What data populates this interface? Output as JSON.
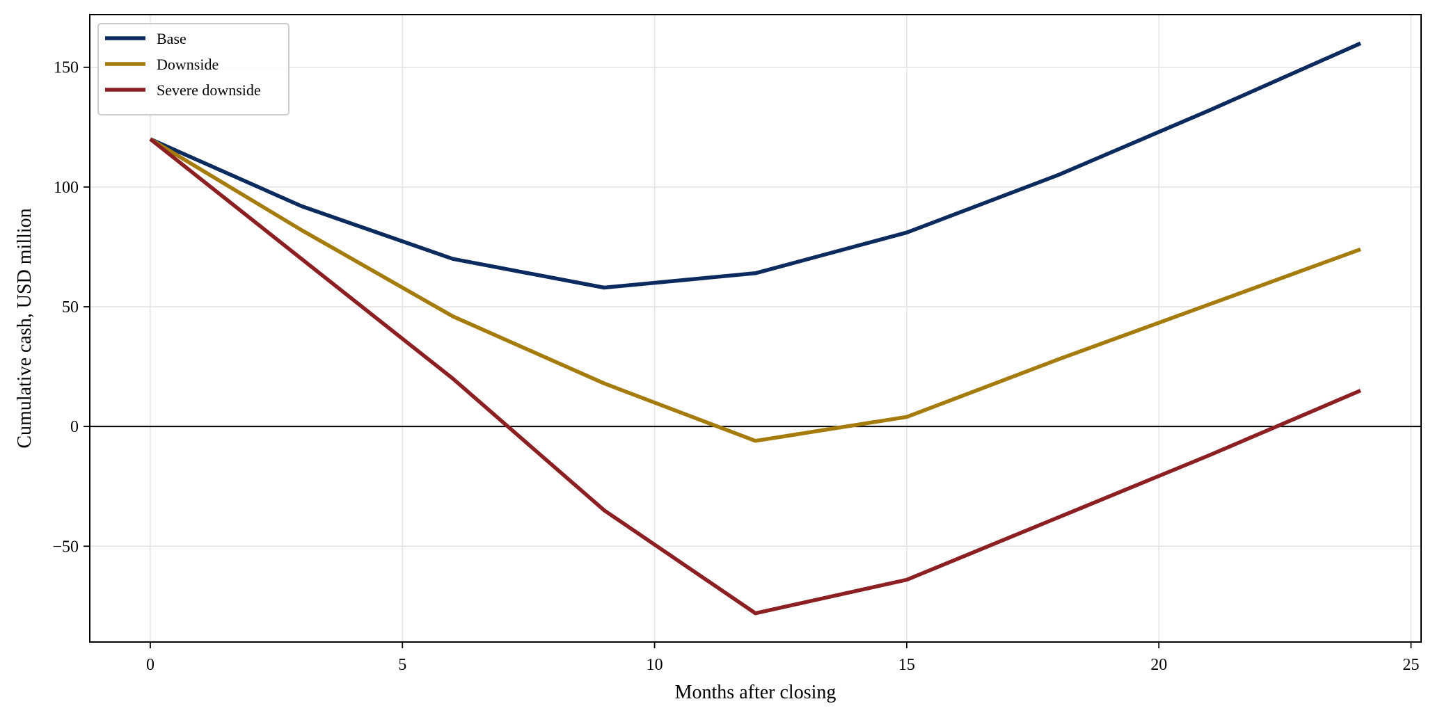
{
  "chart_data": {
    "type": "line",
    "title": "",
    "xlabel": "Months after closing",
    "ylabel": "Cumulative cash, USD million",
    "xlim": [
      -1.2,
      25.2
    ],
    "ylim": [
      -90,
      172
    ],
    "xticks": [
      0,
      5,
      10,
      15,
      20,
      25
    ],
    "yticks": [
      -50,
      0,
      50,
      100,
      150
    ],
    "xtick_labels": [
      "0",
      "5",
      "10",
      "15",
      "20",
      "25"
    ],
    "ytick_labels": [
      "−50",
      "0",
      "50",
      "100",
      "150"
    ],
    "grid": true,
    "zero_line": true,
    "legend_position": "top-left",
    "x": [
      0,
      3,
      6,
      9,
      12,
      15,
      18,
      21,
      24
    ],
    "series": [
      {
        "name": "Base",
        "color": "#0b2a5e",
        "values": [
          120,
          92,
          70,
          58,
          64,
          81,
          105,
          132,
          160
        ]
      },
      {
        "name": "Downside",
        "color": "#a57c0b",
        "values": [
          120,
          82,
          46,
          18,
          -6,
          4,
          28,
          51,
          74
        ]
      },
      {
        "name": "Severe downside",
        "color": "#8b1f22",
        "values": [
          120,
          70,
          20,
          -35,
          -78,
          -64,
          -38,
          -12,
          15
        ]
      }
    ]
  }
}
